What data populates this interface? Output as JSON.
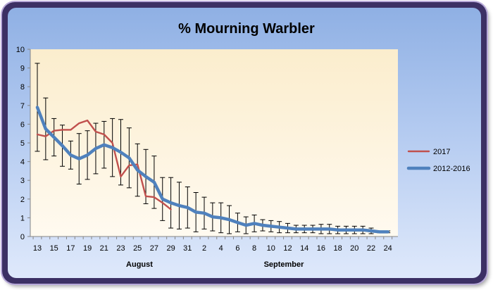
{
  "chart_data": {
    "type": "line",
    "title": "% Mourning Warbler",
    "xlabel": "",
    "ylabel": "",
    "ylim": [
      0,
      10
    ],
    "y_ticks": [
      "0",
      "1",
      "2",
      "3",
      "4",
      "5",
      "6",
      "7",
      "8",
      "9",
      "10"
    ],
    "x_tick_labels": [
      "13",
      "15",
      "17",
      "19",
      "21",
      "23",
      "25",
      "27",
      "29",
      "31",
      "2",
      "4",
      "6",
      "8",
      "10",
      "12",
      "14",
      "16",
      "18",
      "20",
      "22",
      "24"
    ],
    "month_labels": [
      "August",
      "September"
    ],
    "grid": false,
    "legend_position": "right",
    "colors": {
      "series_2017": "#c0504d",
      "series_2012_2016": "#4f81bd",
      "errorbar": "#000000"
    },
    "series": [
      {
        "name": "2017",
        "x": [
          13,
          14,
          15,
          16,
          17,
          18,
          19,
          20,
          21,
          22,
          23,
          24,
          25,
          26,
          27,
          28,
          29
        ],
        "values": [
          5.45,
          5.35,
          5.65,
          5.7,
          5.7,
          6.05,
          6.2,
          5.6,
          5.45,
          5.0,
          3.2,
          3.8,
          3.85,
          2.15,
          2.1,
          1.8,
          1.45
        ]
      },
      {
        "name": "2012-2016",
        "x": [
          13,
          14,
          15,
          16,
          17,
          18,
          19,
          20,
          21,
          22,
          23,
          24,
          25,
          26,
          27,
          28,
          29,
          30,
          31,
          32,
          33,
          34,
          35,
          36,
          37,
          38,
          39,
          40,
          41,
          42,
          43,
          44,
          45,
          46,
          47,
          48,
          49,
          50,
          51,
          52,
          53,
          54,
          55
        ],
        "values": [
          6.9,
          5.75,
          5.3,
          4.85,
          4.35,
          4.15,
          4.35,
          4.7,
          4.9,
          4.75,
          4.5,
          4.2,
          3.55,
          3.2,
          2.9,
          2.0,
          1.8,
          1.65,
          1.55,
          1.3,
          1.25,
          1.05,
          1.0,
          0.9,
          0.75,
          0.6,
          0.7,
          0.6,
          0.55,
          0.5,
          0.45,
          0.4,
          0.4,
          0.4,
          0.4,
          0.4,
          0.35,
          0.35,
          0.35,
          0.35,
          0.3,
          0.25,
          0.25
        ],
        "error": [
          2.35,
          1.65,
          1.0,
          1.1,
          0.75,
          1.35,
          1.3,
          1.35,
          1.25,
          1.55,
          1.75,
          1.6,
          1.4,
          1.45,
          1.4,
          1.15,
          1.35,
          1.25,
          1.1,
          1.05,
          0.85,
          0.75,
          0.8,
          0.75,
          0.5,
          0.45,
          0.45,
          0.3,
          0.3,
          0.3,
          0.25,
          0.2,
          0.2,
          0.2,
          0.25,
          0.25,
          0.2,
          0.2,
          0.2,
          0.2,
          0.15,
          0.05,
          0.05
        ]
      }
    ]
  }
}
